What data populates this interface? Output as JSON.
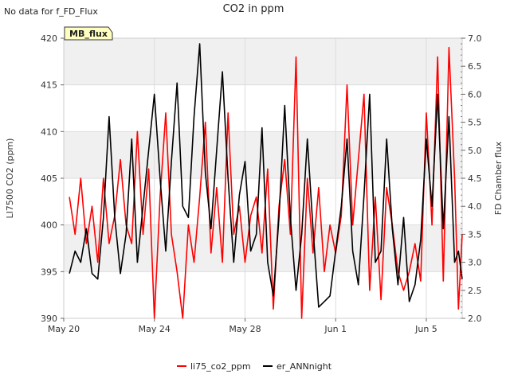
{
  "notice": "No data for f_FD_Flux",
  "badge": "MB_flux",
  "colors": {
    "plot_bg": "#ffffff",
    "band": "#f0f0f0",
    "grid": "#dddddd",
    "badge_bg": "#ffffc0",
    "badge_text": "#8b0000"
  },
  "chart_data": {
    "type": "line",
    "title": "CO2 in ppm",
    "ylabel": "LI7500 CO2 (ppm)",
    "y2label": "FD Chamber flux",
    "xlim": [
      "2024-05-20",
      "2024-06-06T14:00"
    ],
    "ylim": [
      390,
      420
    ],
    "y2lim": [
      2.0,
      7.0
    ],
    "grid": true,
    "legend_position": "bottom",
    "x_ticks": [
      {
        "value": "2024-05-20",
        "label": "May 20"
      },
      {
        "value": "2024-05-24",
        "label": "May 24"
      },
      {
        "value": "2024-05-28",
        "label": "May 28"
      },
      {
        "value": "2024-06-01",
        "label": "Jun 1"
      },
      {
        "value": "2024-06-05",
        "label": "Jun 5"
      }
    ],
    "y_ticks": [
      "390",
      "395",
      "400",
      "405",
      "410",
      "415",
      "420"
    ],
    "y2_ticks": [
      "2.0",
      "2.5",
      "3.0",
      "3.5",
      "4.0",
      "4.5",
      "5.0",
      "5.5",
      "6.0",
      "6.5",
      "7.0"
    ],
    "series": [
      {
        "name": "li75_co2_ppm",
        "color": "#ff0000",
        "axis": "left",
        "points": [
          [
            "2024-05-20T06:00",
            403
          ],
          [
            "2024-05-20T12:00",
            399
          ],
          [
            "2024-05-20T18:00",
            405
          ],
          [
            "2024-05-21T00:00",
            398
          ],
          [
            "2024-05-21T06:00",
            402
          ],
          [
            "2024-05-21T12:00",
            396
          ],
          [
            "2024-05-21T18:00",
            405
          ],
          [
            "2024-05-22T00:00",
            398
          ],
          [
            "2024-05-22T06:00",
            401
          ],
          [
            "2024-05-22T12:00",
            407
          ],
          [
            "2024-05-22T18:00",
            400
          ],
          [
            "2024-05-23T00:00",
            398
          ],
          [
            "2024-05-23T06:00",
            410
          ],
          [
            "2024-05-23T12:00",
            399
          ],
          [
            "2024-05-23T18:00",
            406
          ],
          [
            "2024-05-24T00:00",
            390
          ],
          [
            "2024-05-24T06:00",
            403
          ],
          [
            "2024-05-24T12:00",
            412
          ],
          [
            "2024-05-24T18:00",
            399
          ],
          [
            "2024-05-25T00:00",
            395
          ],
          [
            "2024-05-25T06:00",
            390
          ],
          [
            "2024-05-25T12:00",
            400
          ],
          [
            "2024-05-25T18:00",
            396
          ],
          [
            "2024-05-26T00:00",
            403
          ],
          [
            "2024-05-26T06:00",
            411
          ],
          [
            "2024-05-26T12:00",
            397
          ],
          [
            "2024-05-26T18:00",
            404
          ],
          [
            "2024-05-27T00:00",
            396
          ],
          [
            "2024-05-27T06:00",
            412
          ],
          [
            "2024-05-27T12:00",
            399
          ],
          [
            "2024-05-27T18:00",
            402
          ],
          [
            "2024-05-28T00:00",
            396
          ],
          [
            "2024-05-28T06:00",
            401
          ],
          [
            "2024-05-28T12:00",
            403
          ],
          [
            "2024-05-28T18:00",
            397
          ],
          [
            "2024-05-29T00:00",
            406
          ],
          [
            "2024-05-29T06:00",
            391
          ],
          [
            "2024-05-29T12:00",
            402
          ],
          [
            "2024-05-29T18:00",
            407
          ],
          [
            "2024-05-30T00:00",
            399
          ],
          [
            "2024-05-30T06:00",
            418
          ],
          [
            "2024-05-30T12:00",
            390
          ],
          [
            "2024-05-30T18:00",
            405
          ],
          [
            "2024-05-31T00:00",
            397
          ],
          [
            "2024-05-31T06:00",
            404
          ],
          [
            "2024-05-31T12:00",
            395
          ],
          [
            "2024-05-31T18:00",
            400
          ],
          [
            "2024-06-01T00:00",
            397
          ],
          [
            "2024-06-01T06:00",
            401
          ],
          [
            "2024-06-01T12:00",
            415
          ],
          [
            "2024-06-01T18:00",
            400
          ],
          [
            "2024-06-02T00:00",
            407
          ],
          [
            "2024-06-02T06:00",
            414
          ],
          [
            "2024-06-02T12:00",
            393
          ],
          [
            "2024-06-02T18:00",
            403
          ],
          [
            "2024-06-03T00:00",
            392
          ],
          [
            "2024-06-03T06:00",
            404
          ],
          [
            "2024-06-03T12:00",
            400
          ],
          [
            "2024-06-03T18:00",
            395
          ],
          [
            "2024-06-04T00:00",
            393
          ],
          [
            "2024-06-04T06:00",
            395
          ],
          [
            "2024-06-04T12:00",
            398
          ],
          [
            "2024-06-04T18:00",
            394
          ],
          [
            "2024-06-05T00:00",
            412
          ],
          [
            "2024-06-05T06:00",
            400
          ],
          [
            "2024-06-05T12:00",
            418
          ],
          [
            "2024-06-05T18:00",
            394
          ],
          [
            "2024-06-06T00:00",
            419
          ],
          [
            "2024-06-06T06:00",
            405
          ],
          [
            "2024-06-06T10:00",
            391
          ],
          [
            "2024-06-06T14:00",
            399
          ]
        ]
      },
      {
        "name": "er_ANNnight",
        "color": "#000000",
        "axis": "right",
        "points": [
          [
            "2024-05-20T06:00",
            2.8
          ],
          [
            "2024-05-20T12:00",
            3.2
          ],
          [
            "2024-05-20T18:00",
            3.0
          ],
          [
            "2024-05-21T00:00",
            3.6
          ],
          [
            "2024-05-21T06:00",
            2.8
          ],
          [
            "2024-05-21T12:00",
            2.7
          ],
          [
            "2024-05-21T18:00",
            3.8
          ],
          [
            "2024-05-22T00:00",
            5.6
          ],
          [
            "2024-05-22T06:00",
            3.8
          ],
          [
            "2024-05-22T12:00",
            2.8
          ],
          [
            "2024-05-22T18:00",
            3.5
          ],
          [
            "2024-05-23T00:00",
            5.2
          ],
          [
            "2024-05-23T06:00",
            3.0
          ],
          [
            "2024-05-23T12:00",
            4.0
          ],
          [
            "2024-05-23T18:00",
            5.0
          ],
          [
            "2024-05-24T00:00",
            6.0
          ],
          [
            "2024-05-24T06:00",
            4.5
          ],
          [
            "2024-05-24T12:00",
            3.2
          ],
          [
            "2024-05-24T18:00",
            4.8
          ],
          [
            "2024-05-25T00:00",
            6.2
          ],
          [
            "2024-05-25T06:00",
            4.0
          ],
          [
            "2024-05-25T12:00",
            3.8
          ],
          [
            "2024-05-25T18:00",
            5.6
          ],
          [
            "2024-05-26T00:00",
            6.9
          ],
          [
            "2024-05-26T06:00",
            4.6
          ],
          [
            "2024-05-26T12:00",
            3.6
          ],
          [
            "2024-05-26T18:00",
            5.0
          ],
          [
            "2024-05-27T00:00",
            6.4
          ],
          [
            "2024-05-27T06:00",
            4.5
          ],
          [
            "2024-05-27T12:00",
            3.0
          ],
          [
            "2024-05-27T18:00",
            4.2
          ],
          [
            "2024-05-28T00:00",
            4.8
          ],
          [
            "2024-05-28T06:00",
            3.2
          ],
          [
            "2024-05-28T12:00",
            3.5
          ],
          [
            "2024-05-28T18:00",
            5.4
          ],
          [
            "2024-05-29T00:00",
            3.0
          ],
          [
            "2024-05-29T06:00",
            2.4
          ],
          [
            "2024-05-29T12:00",
            3.8
          ],
          [
            "2024-05-29T18:00",
            5.8
          ],
          [
            "2024-05-30T00:00",
            3.8
          ],
          [
            "2024-05-30T06:00",
            2.5
          ],
          [
            "2024-05-30T12:00",
            3.5
          ],
          [
            "2024-05-30T18:00",
            5.2
          ],
          [
            "2024-05-31T00:00",
            3.6
          ],
          [
            "2024-05-31T06:00",
            2.2
          ],
          [
            "2024-05-31T12:00",
            2.3
          ],
          [
            "2024-05-31T18:00",
            2.4
          ],
          [
            "2024-06-01T00:00",
            3.2
          ],
          [
            "2024-06-01T06:00",
            4.0
          ],
          [
            "2024-06-01T12:00",
            5.2
          ],
          [
            "2024-06-01T18:00",
            3.2
          ],
          [
            "2024-06-02T00:00",
            2.6
          ],
          [
            "2024-06-02T06:00",
            4.2
          ],
          [
            "2024-06-02T12:00",
            6.0
          ],
          [
            "2024-06-02T18:00",
            3.0
          ],
          [
            "2024-06-03T00:00",
            3.2
          ],
          [
            "2024-06-03T06:00",
            5.2
          ],
          [
            "2024-06-03T12:00",
            3.6
          ],
          [
            "2024-06-03T18:00",
            2.6
          ],
          [
            "2024-06-04T00:00",
            3.8
          ],
          [
            "2024-06-04T06:00",
            2.3
          ],
          [
            "2024-06-04T12:00",
            2.6
          ],
          [
            "2024-06-04T18:00",
            3.4
          ],
          [
            "2024-06-05T00:00",
            5.2
          ],
          [
            "2024-06-05T06:00",
            4.0
          ],
          [
            "2024-06-05T12:00",
            6.0
          ],
          [
            "2024-06-05T18:00",
            3.6
          ],
          [
            "2024-06-06T00:00",
            5.6
          ],
          [
            "2024-06-06T06:00",
            3.0
          ],
          [
            "2024-06-06T10:00",
            3.2
          ],
          [
            "2024-06-06T14:00",
            2.7
          ]
        ]
      }
    ]
  }
}
